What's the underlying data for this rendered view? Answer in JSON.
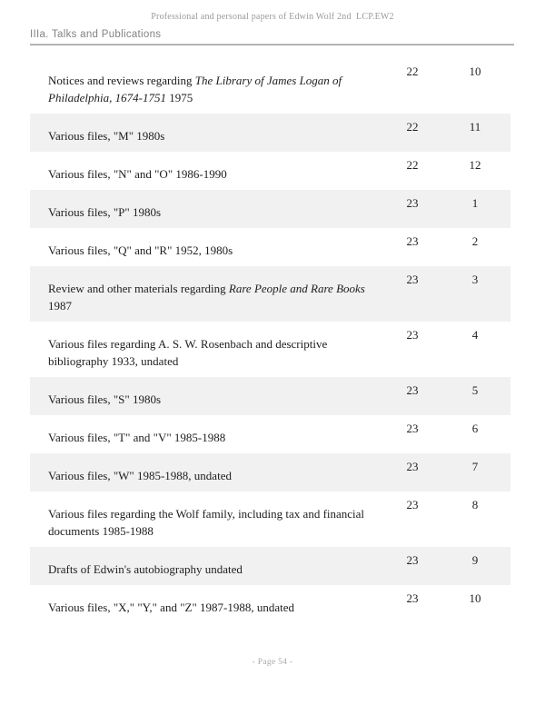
{
  "page_header": {
    "title": "Professional and personal papers of Edwin Wolf 2nd  LCP.EW2"
  },
  "section": {
    "heading": "IIIa. Talks and Publications"
  },
  "table": {
    "rows": [
      {
        "shaded": false,
        "box": "22",
        "folder": "10",
        "title": [
          {
            "t": "Notices and reviews regarding ",
            "i": false
          },
          {
            "t": "The Library of James Logan of\nPhiladelphia, 1674-1751",
            "i": true
          },
          {
            "t": " 1975",
            "i": false
          }
        ]
      },
      {
        "shaded": true,
        "box": "22",
        "folder": "11",
        "title": [
          {
            "t": "Various files, \"M\" 1980s",
            "i": false
          }
        ]
      },
      {
        "shaded": false,
        "box": "22",
        "folder": "12",
        "title": [
          {
            "t": "Various files, \"N\" and \"O\" 1986-1990",
            "i": false
          }
        ]
      },
      {
        "shaded": true,
        "box": "23",
        "folder": "1",
        "title": [
          {
            "t": "Various files, \"P\" 1980s",
            "i": false
          }
        ]
      },
      {
        "shaded": false,
        "box": "23",
        "folder": "2",
        "title": [
          {
            "t": "Various files, \"Q\" and \"R\" 1952, 1980s",
            "i": false
          }
        ]
      },
      {
        "shaded": true,
        "box": "23",
        "folder": "3",
        "title": [
          {
            "t": "Review and other materials regarding ",
            "i": false
          },
          {
            "t": "Rare People and Rare Books",
            "i": true
          },
          {
            "t": " 1987",
            "i": false
          }
        ]
      },
      {
        "shaded": false,
        "box": "23",
        "folder": "4",
        "title": [
          {
            "t": "Various files regarding A. S. W. Rosenbach and descriptive\nbibliography 1933, undated",
            "i": false
          }
        ]
      },
      {
        "shaded": true,
        "box": "23",
        "folder": "5",
        "title": [
          {
            "t": "Various files, \"S\" 1980s",
            "i": false
          }
        ]
      },
      {
        "shaded": false,
        "box": "23",
        "folder": "6",
        "title": [
          {
            "t": "Various files, \"T\" and \"V\" 1985-1988",
            "i": false
          }
        ]
      },
      {
        "shaded": true,
        "box": "23",
        "folder": "7",
        "title": [
          {
            "t": "Various files, \"W\" 1985-1988, undated",
            "i": false
          }
        ]
      },
      {
        "shaded": false,
        "box": "23",
        "folder": "8",
        "title": [
          {
            "t": "Various files regarding the Wolf family, including tax and financial\ndocuments 1985-1988",
            "i": false
          }
        ]
      },
      {
        "shaded": true,
        "box": "23",
        "folder": "9",
        "title": [
          {
            "t": "Drafts of Edwin's autobiography undated",
            "i": false
          }
        ]
      },
      {
        "shaded": false,
        "box": "23",
        "folder": "10",
        "title": [
          {
            "t": "Various files, \"X,\" \"Y,\" and \"Z\" 1987-1988, undated",
            "i": false
          }
        ]
      }
    ]
  },
  "footer": {
    "page_label": "- Page 54 -"
  },
  "colors": {
    "shaded_row_bg": "#f1f1f1",
    "body_text": "#1d1d1d",
    "muted_text": "#9a9a9a",
    "heading_text": "#828282",
    "rule": "#8f8f8f"
  }
}
